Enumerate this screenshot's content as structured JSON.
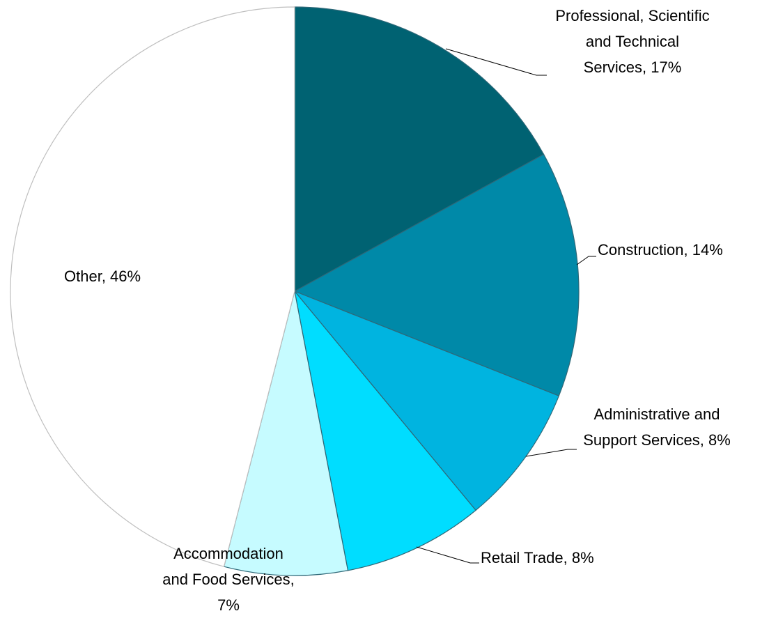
{
  "chart_data": {
    "type": "pie",
    "categories": [
      "Professional, Scientific and Technical Services",
      "Construction",
      "Administrative and Support Services",
      "Retail Trade",
      "Accommodation and Food Services",
      "Other"
    ],
    "values": [
      17,
      14,
      8,
      8,
      7,
      46
    ],
    "value_labels": [
      "17%",
      "14%",
      "8%",
      "8%",
      "7%",
      "46%"
    ],
    "colors": [
      "#006272",
      "#0089a8",
      "#00b4e0",
      "#00ddff",
      "#c6fbff",
      "#ffffff"
    ],
    "start_angle": 0,
    "direction": "clockwise"
  }
}
